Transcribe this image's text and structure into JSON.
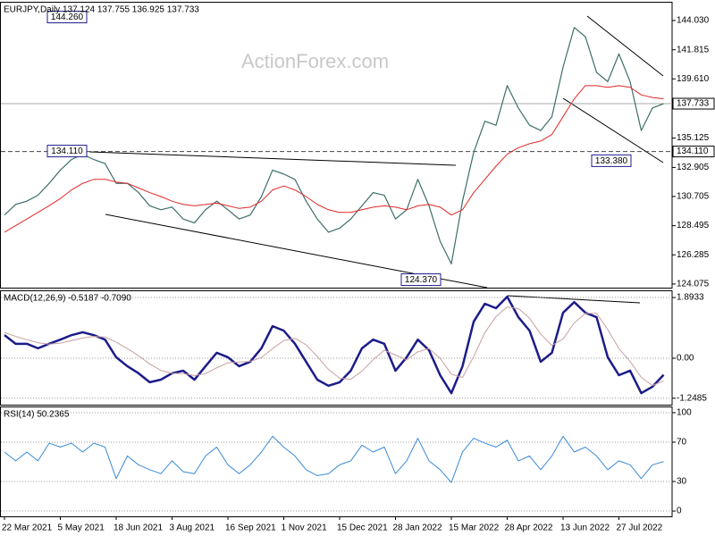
{
  "chart_data": [
    {
      "type": "line",
      "title": "EURJPY,Daily  137.124 137.755 136.925 137.733",
      "watermark": "ActionForex.com",
      "ylim": [
        123.8,
        145.38
      ],
      "yticks": [
        {
          "value": 144.03,
          "label": "144.030"
        },
        {
          "value": 141.815,
          "label": "141.815"
        },
        {
          "value": 139.61,
          "label": "139.610"
        },
        {
          "value": 135.125,
          "label": "135.125"
        },
        {
          "value": 132.905,
          "label": "132.905"
        },
        {
          "value": 130.705,
          "label": "130.705"
        },
        {
          "value": 128.495,
          "label": "128.495"
        },
        {
          "value": 126.285,
          "label": "126.285"
        },
        {
          "value": 124.075,
          "label": "124.075"
        }
      ],
      "last_price": {
        "value": 137.733,
        "label": "137.733"
      },
      "level": {
        "value": 134.11,
        "label": "134.110"
      },
      "annotations": [
        {
          "label": "144.260",
          "value": 144.26
        },
        {
          "label": "134.110",
          "value": 134.11
        },
        {
          "label": "133.380",
          "value": 133.38
        },
        {
          "label": "124.370",
          "value": 124.37
        }
      ],
      "series": [
        {
          "color": "#3d6e6a",
          "values": [
            129.3,
            130.1,
            130.35,
            130.8,
            131.7,
            132.7,
            133.5,
            133.9,
            133.5,
            133.2,
            131.7,
            131.7,
            131.0,
            130.0,
            129.7,
            129.9,
            129.0,
            128.7,
            129.7,
            130.35,
            129.7,
            129.0,
            129.3,
            130.7,
            132.7,
            132.4,
            132.0,
            130.35,
            129.0,
            128.0,
            128.3,
            129.0,
            130.0,
            131.0,
            130.8,
            129.0,
            129.7,
            132.0,
            130.0,
            127.3,
            125.6,
            130.35,
            134.05,
            136.4,
            136.1,
            139.1,
            137.4,
            136.1,
            135.7,
            136.75,
            140.5,
            143.5,
            142.8,
            140.1,
            139.4,
            141.5,
            139.4,
            135.7,
            137.4,
            137.733
          ]
        },
        {
          "color": "#e02828",
          "values": [
            128.0,
            128.5,
            129.0,
            129.5,
            130.0,
            130.55,
            131.2,
            131.7,
            132.0,
            132.0,
            131.8,
            131.7,
            131.35,
            131.0,
            130.7,
            130.35,
            130.1,
            130.0,
            130.1,
            130.2,
            130.0,
            129.8,
            129.9,
            130.35,
            131.2,
            131.5,
            131.2,
            130.7,
            130.1,
            129.7,
            129.5,
            129.5,
            129.7,
            129.9,
            130.0,
            129.9,
            129.7,
            130.0,
            130.1,
            129.9,
            129.3,
            129.7,
            131.0,
            132.0,
            133.0,
            133.9,
            134.4,
            134.7,
            134.9,
            135.4,
            136.75,
            138.1,
            139.1,
            139.1,
            138.97,
            139.1,
            138.97,
            138.4,
            138.2,
            138.1
          ]
        }
      ]
    },
    {
      "type": "line",
      "title": "MACD(12,26,9) -0.5187 -0.7090",
      "ylim": [
        -1.45,
        2.09
      ],
      "yticks": [
        1.8933,
        {
          "value": 0,
          "label": "0.00"
        },
        -1.2485
      ],
      "grid": true,
      "series": [
        {
          "color": "#1c1c8a",
          "values": [
            0.72,
            0.45,
            0.45,
            0.31,
            0.45,
            0.58,
            0.72,
            0.81,
            0.72,
            0.58,
            0.03,
            -0.25,
            -0.47,
            -0.75,
            -0.67,
            -0.47,
            -0.39,
            -0.67,
            -0.25,
            0.17,
            0.03,
            -0.25,
            -0.11,
            0.31,
            1.0,
            0.86,
            0.45,
            -0.11,
            -0.67,
            -0.86,
            -0.75,
            -0.39,
            0.31,
            0.58,
            0.45,
            -0.39,
            0.03,
            0.58,
            0.25,
            -0.53,
            -1.09,
            -0.25,
            1.14,
            1.7,
            1.56,
            1.92,
            1.28,
            0.86,
            -0.11,
            0.17,
            1.42,
            1.75,
            1.42,
            1.28,
            0.03,
            -0.53,
            -0.39,
            -1.09,
            -0.89,
            -0.5187
          ]
        },
        {
          "color": "#c8a0a0",
          "values": [
            0.8,
            0.68,
            0.58,
            0.48,
            0.44,
            0.47,
            0.55,
            0.63,
            0.68,
            0.66,
            0.5,
            0.3,
            0.08,
            -0.18,
            -0.38,
            -0.47,
            -0.48,
            -0.54,
            -0.48,
            -0.3,
            -0.14,
            -0.12,
            -0.1,
            0.02,
            0.3,
            0.55,
            0.62,
            0.42,
            0.05,
            -0.35,
            -0.62,
            -0.66,
            -0.4,
            -0.05,
            0.25,
            0.1,
            -0.05,
            0.2,
            0.3,
            0.0,
            -0.5,
            -0.6,
            0.05,
            0.8,
            1.3,
            1.6,
            1.55,
            1.25,
            0.75,
            0.4,
            0.6,
            1.1,
            1.4,
            1.4,
            0.9,
            0.3,
            -0.1,
            -0.6,
            -0.85,
            -0.709
          ]
        }
      ]
    },
    {
      "type": "line",
      "title": "RSI(14) 50.2365",
      "ylim": [
        -5.4,
        105.4
      ],
      "yticks": [
        100,
        70,
        30,
        0
      ],
      "grid": true,
      "categories": [
        "22 Mar 2021",
        null,
        null,
        null,
        null,
        "5 May 2021",
        null,
        null,
        null,
        null,
        "18 Jun 2021",
        null,
        null,
        null,
        null,
        "3 Aug 2021",
        null,
        null,
        null,
        null,
        "16 Sep 2021",
        null,
        null,
        null,
        null,
        "1 Nov 2021",
        null,
        null,
        null,
        null,
        "15 Dec 2021",
        null,
        null,
        null,
        null,
        "28 Jan 2022",
        null,
        null,
        null,
        null,
        "15 Mar 2022",
        null,
        null,
        null,
        null,
        "28 Apr 2022",
        null,
        null,
        null,
        null,
        "13 Jun 2022",
        null,
        null,
        null,
        null,
        "27 Jul 2022",
        null,
        null,
        null,
        null
      ],
      "series": [
        {
          "color": "#3a8ad6",
          "values": [
            60,
            51,
            60,
            51,
            69,
            65,
            69,
            60,
            69,
            65,
            33,
            56,
            47,
            42,
            38,
            51,
            40,
            38,
            56,
            65,
            47,
            38,
            47,
            60,
            76,
            65,
            56,
            42,
            36,
            38,
            47,
            51,
            67,
            60,
            65,
            38,
            51,
            74,
            51,
            42,
            29,
            60,
            74,
            69,
            65,
            72,
            51,
            56,
            42,
            56,
            76,
            60,
            65,
            56,
            42,
            51,
            47,
            33,
            47,
            50.2365
          ]
        }
      ]
    }
  ]
}
